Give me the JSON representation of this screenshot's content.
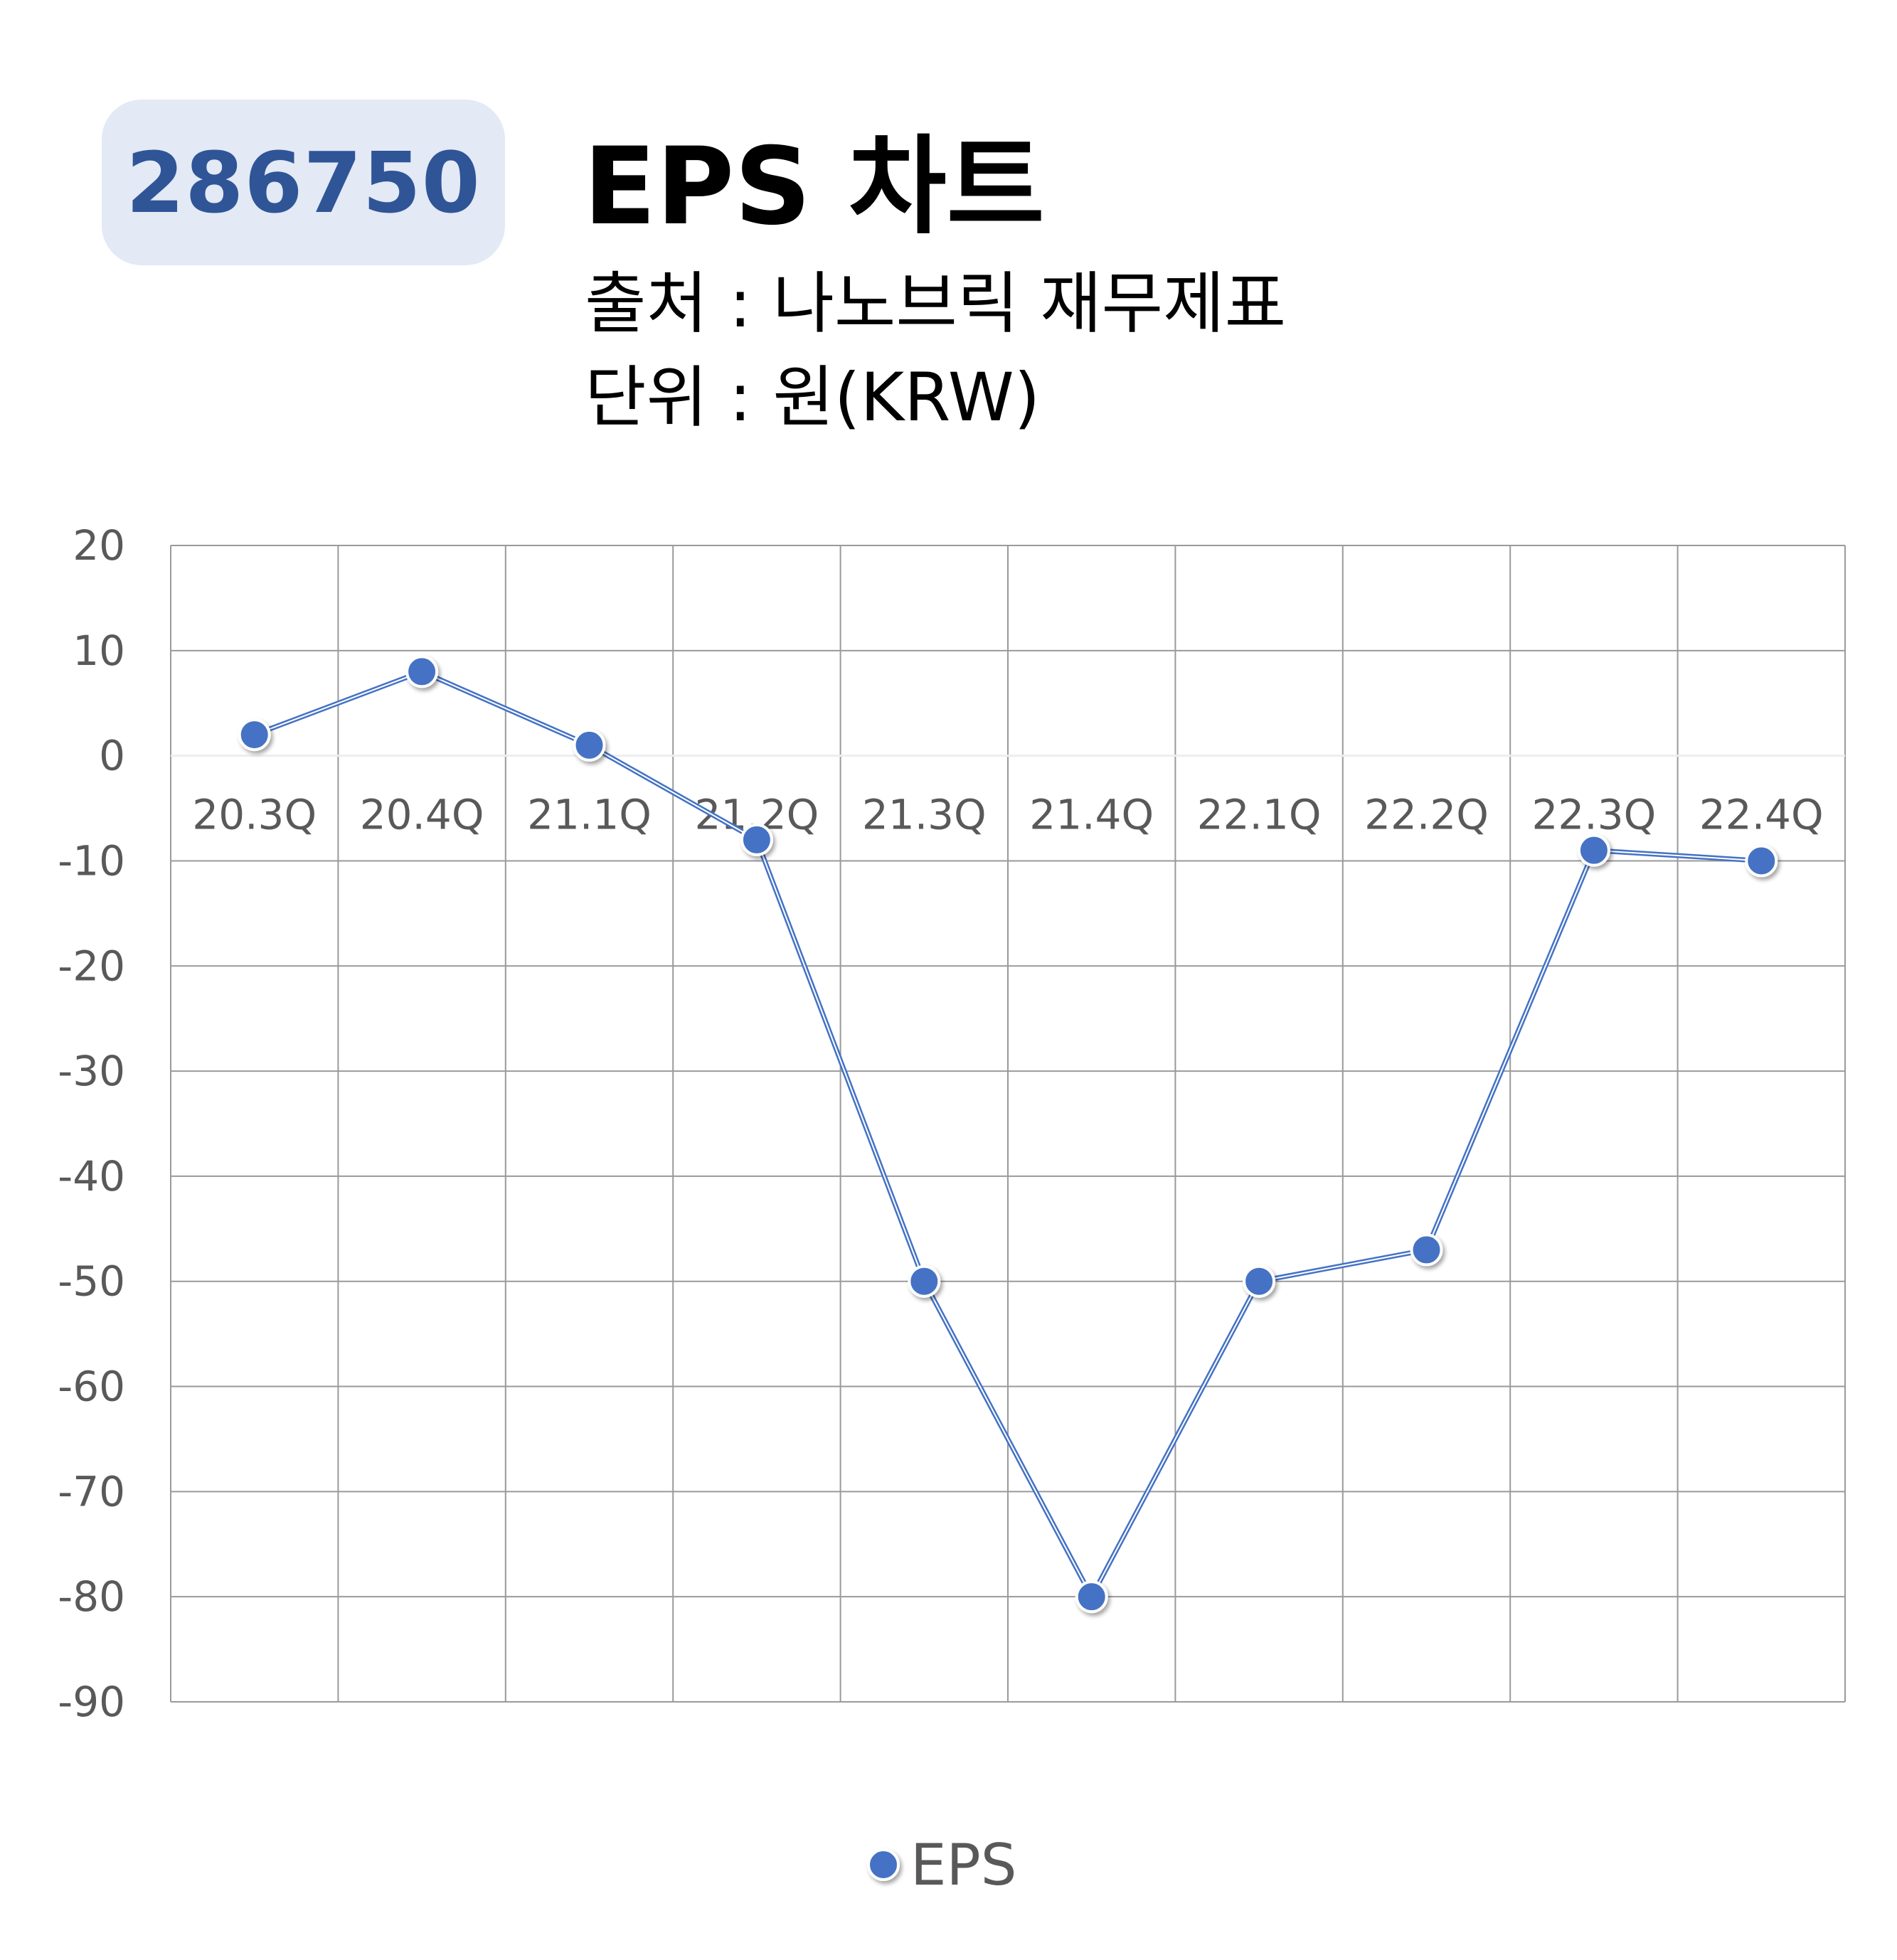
{
  "header": {
    "code": "286750",
    "title": "EPS 차트",
    "source": "출처 : 나노브릭 재무제표",
    "unit": "단위 : 원(KRW)"
  },
  "chart_data": {
    "type": "line",
    "categories": [
      "20.3Q",
      "20.4Q",
      "21.1Q",
      "21.2Q",
      "21.3Q",
      "21.4Q",
      "22.1Q",
      "22.2Q",
      "22.3Q",
      "22.4Q"
    ],
    "series": [
      {
        "name": "EPS",
        "values": [
          2,
          8,
          1,
          -8,
          -50,
          -80,
          -50,
          -47,
          -9,
          -10
        ],
        "color": "#4472c4"
      }
    ],
    "ylim": [
      -90,
      20
    ],
    "yticks": [
      20,
      10,
      0,
      -10,
      -20,
      -30,
      -40,
      -50,
      -60,
      -70,
      -80,
      -90
    ],
    "grid": true,
    "legend_position": "bottom"
  }
}
